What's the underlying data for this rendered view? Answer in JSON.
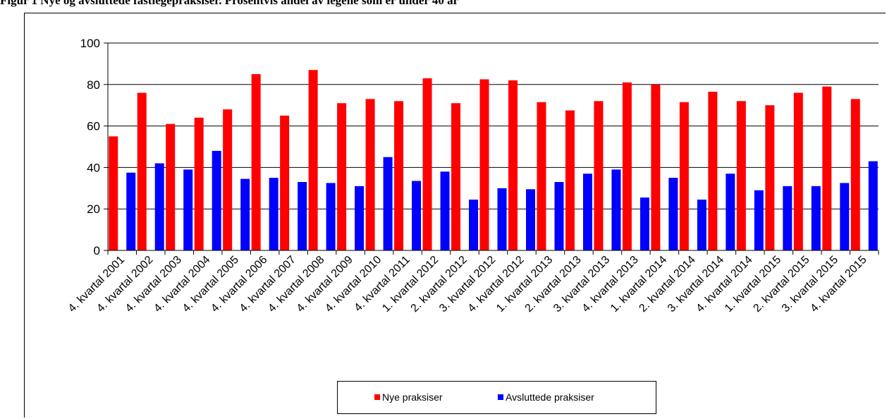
{
  "figure": {
    "title": "Figur 1 Nye og avsluttede fastlegepraksiser. Prosentvis andel av legene som er under 40 år"
  },
  "chart_data": {
    "type": "bar",
    "categories": [
      "4. kvartal 2001",
      "4. kvartal 2002",
      "4. kvartal 2003",
      "4. kvartal 2004",
      "4. kvartal 2005",
      "4. kvartal 2006",
      "4. kvartal 2007",
      "4. kvartal 2008",
      "4. kvartal 2009",
      "4. kvartal 2010",
      "4. kvartal 2011",
      "1. kvartal 2012",
      "2. kvartal 2012",
      "3. kvartal 2012",
      "4. kvartal 2012",
      "1. kvartal 2013",
      "2. kvartal 2013",
      "3. kvartal 2013",
      "4. kvartal 2013",
      "1. kvartal 2014",
      "2. kvartal 2014",
      "3. kvartal 2014",
      "4. kvartal 2014",
      "1. kvartal 2015",
      "2. kvartal 2015",
      "3. kvartal 2015",
      "4. kvartal 2015"
    ],
    "series": [
      {
        "name": "Nye praksiser",
        "color": "#ff0000",
        "values": [
          55,
          76,
          61,
          64,
          68,
          85,
          65,
          87,
          71,
          73,
          72,
          83,
          71,
          82.5,
          82,
          71.5,
          67.5,
          72,
          81,
          80,
          71.5,
          76.5,
          72,
          70,
          76,
          79,
          73
        ]
      },
      {
        "name": "Avsluttede praksiser",
        "color": "#0000ff",
        "values": [
          37.5,
          42,
          39,
          48,
          34.5,
          35,
          33,
          32.5,
          31,
          45,
          33.5,
          38,
          24.5,
          30,
          29.5,
          33,
          37,
          39,
          25.5,
          35,
          24.5,
          37,
          29,
          31,
          31,
          32.5,
          43
        ]
      }
    ],
    "yticks": [
      "0",
      "20",
      "40",
      "60",
      "80",
      "100"
    ],
    "ylim": [
      0,
      100
    ],
    "grid": true,
    "legend_position": "bottom"
  }
}
